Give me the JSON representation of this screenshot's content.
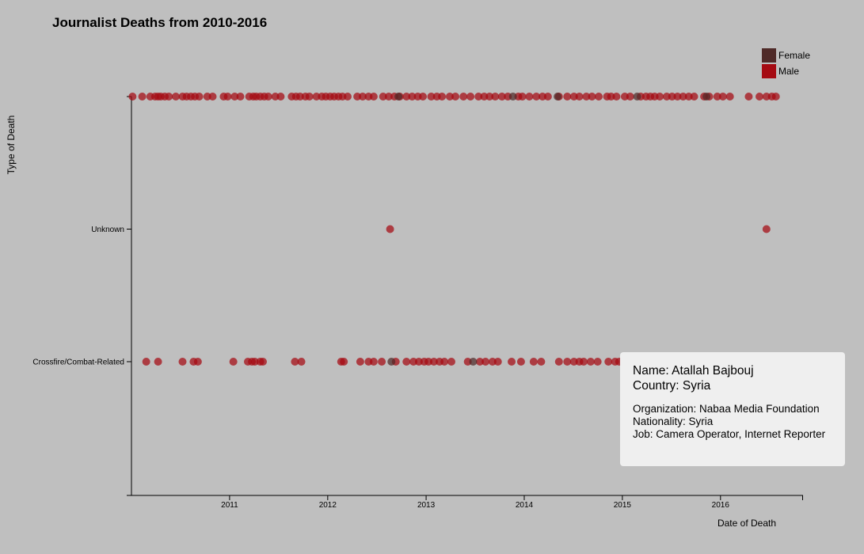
{
  "chart_data": {
    "type": "scatter",
    "title": "Journalist Deaths from 2010-2016",
    "xlabel": "Date of Death",
    "ylabel": "Type of Death",
    "x_ticks": [
      "2011",
      "2012",
      "2013",
      "2014",
      "2015",
      "2016"
    ],
    "xlim": [
      "2010-01-01",
      "2016-10-31"
    ],
    "y_categories": [
      "Crossfire/Combat-Related",
      "Unknown",
      ""
    ],
    "y_tick_labels": [
      "Crossfire/Combat-Related",
      "Unknown"
    ],
    "legend": {
      "placement": "top-right",
      "entries": [
        {
          "name": "Female",
          "color": "#4f2a28"
        },
        {
          "name": "Male",
          "color": "#a50a12"
        }
      ]
    },
    "series": [
      {
        "name": "Male",
        "color": "#a50a12",
        "points": [
          {
            "x": "2010-01-05",
            "y": ""
          },
          {
            "x": "2010-02-10",
            "y": ""
          },
          {
            "x": "2010-03-12",
            "y": ""
          },
          {
            "x": "2010-03-30",
            "y": ""
          },
          {
            "x": "2010-04-10",
            "y": ""
          },
          {
            "x": "2010-04-20",
            "y": ""
          },
          {
            "x": "2010-05-05",
            "y": ""
          },
          {
            "x": "2010-05-20",
            "y": ""
          },
          {
            "x": "2010-06-15",
            "y": ""
          },
          {
            "x": "2010-07-10",
            "y": ""
          },
          {
            "x": "2010-07-25",
            "y": ""
          },
          {
            "x": "2010-08-10",
            "y": ""
          },
          {
            "x": "2010-08-25",
            "y": ""
          },
          {
            "x": "2010-09-10",
            "y": ""
          },
          {
            "x": "2010-10-10",
            "y": ""
          },
          {
            "x": "2010-10-30",
            "y": ""
          },
          {
            "x": "2010-12-10",
            "y": ""
          },
          {
            "x": "2010-12-25",
            "y": ""
          },
          {
            "x": "2011-01-20",
            "y": ""
          },
          {
            "x": "2011-02-10",
            "y": ""
          },
          {
            "x": "2011-03-15",
            "y": ""
          },
          {
            "x": "2011-03-30",
            "y": ""
          },
          {
            "x": "2011-04-10",
            "y": ""
          },
          {
            "x": "2011-04-25",
            "y": ""
          },
          {
            "x": "2011-05-10",
            "y": ""
          },
          {
            "x": "2011-05-25",
            "y": ""
          },
          {
            "x": "2011-06-20",
            "y": ""
          },
          {
            "x": "2011-07-10",
            "y": ""
          },
          {
            "x": "2011-08-20",
            "y": ""
          },
          {
            "x": "2011-09-05",
            "y": ""
          },
          {
            "x": "2011-09-20",
            "y": ""
          },
          {
            "x": "2011-10-10",
            "y": ""
          },
          {
            "x": "2011-10-25",
            "y": ""
          },
          {
            "x": "2011-11-20",
            "y": ""
          },
          {
            "x": "2011-12-10",
            "y": ""
          },
          {
            "x": "2011-12-25",
            "y": ""
          },
          {
            "x": "2012-01-10",
            "y": ""
          },
          {
            "x": "2012-01-25",
            "y": ""
          },
          {
            "x": "2012-02-10",
            "y": ""
          },
          {
            "x": "2012-02-25",
            "y": ""
          },
          {
            "x": "2012-03-15",
            "y": ""
          },
          {
            "x": "2012-04-20",
            "y": ""
          },
          {
            "x": "2012-05-10",
            "y": ""
          },
          {
            "x": "2012-06-01",
            "y": ""
          },
          {
            "x": "2012-06-20",
            "y": ""
          },
          {
            "x": "2012-07-25",
            "y": ""
          },
          {
            "x": "2012-08-15",
            "y": ""
          },
          {
            "x": "2012-09-05",
            "y": ""
          },
          {
            "x": "2012-09-25",
            "y": ""
          },
          {
            "x": "2012-10-20",
            "y": ""
          },
          {
            "x": "2012-11-10",
            "y": ""
          },
          {
            "x": "2012-12-01",
            "y": ""
          },
          {
            "x": "2012-12-20",
            "y": ""
          },
          {
            "x": "2013-01-20",
            "y": ""
          },
          {
            "x": "2013-02-10",
            "y": ""
          },
          {
            "x": "2013-03-01",
            "y": ""
          },
          {
            "x": "2013-03-30",
            "y": ""
          },
          {
            "x": "2013-04-20",
            "y": ""
          },
          {
            "x": "2013-05-20",
            "y": ""
          },
          {
            "x": "2013-06-15",
            "y": ""
          },
          {
            "x": "2013-07-15",
            "y": ""
          },
          {
            "x": "2013-08-05",
            "y": ""
          },
          {
            "x": "2013-08-25",
            "y": ""
          },
          {
            "x": "2013-09-15",
            "y": ""
          },
          {
            "x": "2013-10-10",
            "y": ""
          },
          {
            "x": "2013-11-01",
            "y": ""
          },
          {
            "x": "2013-12-10",
            "y": ""
          },
          {
            "x": "2013-12-25",
            "y": ""
          },
          {
            "x": "2014-01-20",
            "y": ""
          },
          {
            "x": "2014-02-15",
            "y": ""
          },
          {
            "x": "2014-03-10",
            "y": ""
          },
          {
            "x": "2014-03-30",
            "y": ""
          },
          {
            "x": "2014-05-10",
            "y": ""
          },
          {
            "x": "2014-06-10",
            "y": ""
          },
          {
            "x": "2014-07-05",
            "y": ""
          },
          {
            "x": "2014-07-25",
            "y": ""
          },
          {
            "x": "2014-08-20",
            "y": ""
          },
          {
            "x": "2014-09-10",
            "y": ""
          },
          {
            "x": "2014-10-05",
            "y": ""
          },
          {
            "x": "2014-11-05",
            "y": ""
          },
          {
            "x": "2014-11-20",
            "y": ""
          },
          {
            "x": "2014-12-10",
            "y": ""
          },
          {
            "x": "2015-01-10",
            "y": ""
          },
          {
            "x": "2015-01-30",
            "y": ""
          },
          {
            "x": "2015-03-10",
            "y": ""
          },
          {
            "x": "2015-03-30",
            "y": ""
          },
          {
            "x": "2015-04-15",
            "y": ""
          },
          {
            "x": "2015-05-01",
            "y": ""
          },
          {
            "x": "2015-05-20",
            "y": ""
          },
          {
            "x": "2015-06-15",
            "y": ""
          },
          {
            "x": "2015-07-05",
            "y": ""
          },
          {
            "x": "2015-07-25",
            "y": ""
          },
          {
            "x": "2015-08-15",
            "y": ""
          },
          {
            "x": "2015-09-05",
            "y": ""
          },
          {
            "x": "2015-09-25",
            "y": ""
          },
          {
            "x": "2015-11-01",
            "y": ""
          },
          {
            "x": "2015-11-20",
            "y": ""
          },
          {
            "x": "2015-12-20",
            "y": ""
          },
          {
            "x": "2016-01-10",
            "y": ""
          },
          {
            "x": "2016-02-05",
            "y": ""
          },
          {
            "x": "2016-04-15",
            "y": ""
          },
          {
            "x": "2016-05-25",
            "y": ""
          },
          {
            "x": "2016-06-20",
            "y": ""
          },
          {
            "x": "2016-07-10",
            "y": ""
          },
          {
            "x": "2016-07-25",
            "y": ""
          },
          {
            "x": "2012-08-20",
            "y": "Unknown"
          },
          {
            "x": "2016-06-20",
            "y": "Unknown"
          },
          {
            "x": "2010-02-25",
            "y": "Crossfire/Combat-Related"
          },
          {
            "x": "2010-04-10",
            "y": "Crossfire/Combat-Related"
          },
          {
            "x": "2010-07-10",
            "y": "Crossfire/Combat-Related"
          },
          {
            "x": "2010-08-20",
            "y": "Crossfire/Combat-Related"
          },
          {
            "x": "2010-09-05",
            "y": "Crossfire/Combat-Related"
          },
          {
            "x": "2011-01-15",
            "y": "Crossfire/Combat-Related"
          },
          {
            "x": "2011-03-10",
            "y": "Crossfire/Combat-Related"
          },
          {
            "x": "2011-03-25",
            "y": "Crossfire/Combat-Related"
          },
          {
            "x": "2011-04-05",
            "y": "Crossfire/Combat-Related"
          },
          {
            "x": "2011-04-25",
            "y": "Crossfire/Combat-Related"
          },
          {
            "x": "2011-05-05",
            "y": "Crossfire/Combat-Related"
          },
          {
            "x": "2011-09-01",
            "y": "Crossfire/Combat-Related"
          },
          {
            "x": "2011-09-25",
            "y": "Crossfire/Combat-Related"
          },
          {
            "x": "2012-02-20",
            "y": "Crossfire/Combat-Related"
          },
          {
            "x": "2012-03-01",
            "y": "Crossfire/Combat-Related"
          },
          {
            "x": "2012-05-01",
            "y": "Crossfire/Combat-Related"
          },
          {
            "x": "2012-06-01",
            "y": "Crossfire/Combat-Related"
          },
          {
            "x": "2012-06-20",
            "y": "Crossfire/Combat-Related"
          },
          {
            "x": "2012-07-20",
            "y": "Crossfire/Combat-Related"
          },
          {
            "x": "2012-09-10",
            "y": "Crossfire/Combat-Related"
          },
          {
            "x": "2012-10-20",
            "y": "Crossfire/Combat-Related"
          },
          {
            "x": "2012-11-15",
            "y": "Crossfire/Combat-Related"
          },
          {
            "x": "2012-12-05",
            "y": "Crossfire/Combat-Related"
          },
          {
            "x": "2012-12-25",
            "y": "Crossfire/Combat-Related"
          },
          {
            "x": "2013-01-10",
            "y": "Crossfire/Combat-Related"
          },
          {
            "x": "2013-01-30",
            "y": "Crossfire/Combat-Related"
          },
          {
            "x": "2013-02-20",
            "y": "Crossfire/Combat-Related"
          },
          {
            "x": "2013-03-10",
            "y": "Crossfire/Combat-Related"
          },
          {
            "x": "2013-04-05",
            "y": "Crossfire/Combat-Related"
          },
          {
            "x": "2013-06-05",
            "y": "Crossfire/Combat-Related"
          },
          {
            "x": "2013-07-20",
            "y": "Crossfire/Combat-Related"
          },
          {
            "x": "2013-08-10",
            "y": "Crossfire/Combat-Related"
          },
          {
            "x": "2013-09-05",
            "y": "Crossfire/Combat-Related"
          },
          {
            "x": "2013-09-25",
            "y": "Crossfire/Combat-Related"
          },
          {
            "x": "2013-11-15",
            "y": "Crossfire/Combat-Related"
          },
          {
            "x": "2013-12-20",
            "y": "Crossfire/Combat-Related"
          },
          {
            "x": "2014-02-05",
            "y": "Crossfire/Combat-Related"
          },
          {
            "x": "2014-03-05",
            "y": "Crossfire/Combat-Related"
          },
          {
            "x": "2014-05-10",
            "y": "Crossfire/Combat-Related"
          },
          {
            "x": "2014-06-10",
            "y": "Crossfire/Combat-Related"
          },
          {
            "x": "2014-07-05",
            "y": "Crossfire/Combat-Related"
          },
          {
            "x": "2014-07-25",
            "y": "Crossfire/Combat-Related"
          },
          {
            "x": "2014-08-10",
            "y": "Crossfire/Combat-Related"
          },
          {
            "x": "2014-09-05",
            "y": "Crossfire/Combat-Related"
          },
          {
            "x": "2014-10-01",
            "y": "Crossfire/Combat-Related"
          },
          {
            "x": "2014-11-10",
            "y": "Crossfire/Combat-Related"
          },
          {
            "x": "2014-12-05",
            "y": "Crossfire/Combat-Related"
          },
          {
            "x": "2014-12-20",
            "y": "Crossfire/Combat-Related"
          }
        ]
      },
      {
        "name": "Female",
        "color": "#4f2a28",
        "points": [
          {
            "x": "2012-09-20",
            "y": ""
          },
          {
            "x": "2013-11-20",
            "y": ""
          },
          {
            "x": "2014-05-05",
            "y": ""
          },
          {
            "x": "2015-02-25",
            "y": ""
          },
          {
            "x": "2015-11-10",
            "y": ""
          },
          {
            "x": "2012-08-25",
            "y": "Crossfire/Combat-Related"
          },
          {
            "x": "2013-06-25",
            "y": "Crossfire/Combat-Related"
          }
        ]
      }
    ]
  },
  "tooltip": {
    "name_line": "Name: Atallah Bajbouj",
    "country_line": "Country: Syria",
    "organization_line": "Organization: Nabaa Media Foundation",
    "nationality_line": "Nationality: Syria",
    "job_line": "Job: Camera Operator, Internet Reporter"
  }
}
